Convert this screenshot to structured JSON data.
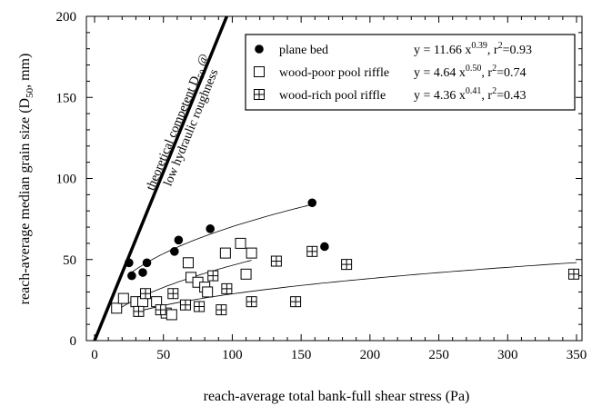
{
  "chart_data": {
    "type": "scatter",
    "xlabel": "reach-average total bank-full shear stress (Pa)",
    "ylabel_main": "reach-average median grain size (D",
    "ylabel_sub": "50",
    "ylabel_tail": ", mm)",
    "xlim": [
      0,
      350
    ],
    "ylim": [
      0,
      200
    ],
    "x_ticks": [
      0,
      50,
      100,
      150,
      200,
      250,
      300,
      350
    ],
    "y_ticks": [
      0,
      50,
      100,
      150,
      200
    ],
    "legend_position": "top-right",
    "series": [
      {
        "name": "plane bed",
        "marker": "filled-circle",
        "equation": {
          "prefix": "y = 11.66 x",
          "exp": "0.39",
          "mid": ", r",
          "r_exp": "2",
          "suffix": "=0.93"
        },
        "fit": {
          "a": 11.66,
          "b": 0.39,
          "x_range": [
            25,
            158
          ]
        },
        "points": [
          [
            25,
            48
          ],
          [
            27,
            40
          ],
          [
            35,
            42
          ],
          [
            38,
            48
          ],
          [
            58,
            55
          ],
          [
            61,
            62
          ],
          [
            84,
            69
          ],
          [
            158,
            85
          ],
          [
            167,
            58
          ]
        ]
      },
      {
        "name": "wood-poor pool riffle",
        "marker": "open-square",
        "equation": {
          "prefix": "y = 4.64 x",
          "exp": "0.50",
          "mid": ", r",
          "r_exp": "2",
          "suffix": "=0.74"
        },
        "fit": {
          "a": 4.64,
          "b": 0.5,
          "x_range": [
            16,
            114
          ]
        },
        "points": [
          [
            16,
            20
          ],
          [
            21,
            26
          ],
          [
            30,
            24
          ],
          [
            35,
            24
          ],
          [
            45,
            24
          ],
          [
            52,
            17
          ],
          [
            56,
            16
          ],
          [
            68,
            48
          ],
          [
            70,
            39
          ],
          [
            75,
            36
          ],
          [
            80,
            33
          ],
          [
            82,
            30
          ],
          [
            95,
            54
          ],
          [
            106,
            60
          ],
          [
            110,
            41
          ],
          [
            114,
            54
          ]
        ]
      },
      {
        "name": "wood-rich pool riffle",
        "marker": "crossed-square",
        "equation": {
          "prefix": "y = 4.36 x",
          "exp": "0.41",
          "mid": ", r",
          "r_exp": "2",
          "suffix": "=0.43"
        },
        "fit": {
          "a": 4.36,
          "b": 0.41,
          "x_range": [
            32,
            350
          ]
        },
        "points": [
          [
            32,
            18
          ],
          [
            37,
            29
          ],
          [
            48,
            19
          ],
          [
            57,
            29
          ],
          [
            66,
            22
          ],
          [
            76,
            21
          ],
          [
            86,
            40
          ],
          [
            92,
            19
          ],
          [
            96,
            32
          ],
          [
            114,
            24
          ],
          [
            132,
            49
          ],
          [
            146,
            24
          ],
          [
            158,
            55
          ],
          [
            183,
            47
          ],
          [
            348,
            41
          ]
        ]
      }
    ],
    "theory_line": {
      "label_line1": "theoretical competent D",
      "label_sub": "50",
      "label_tail": " @",
      "label_line2": "low hydraulic roughness",
      "from": [
        0,
        0
      ],
      "to": [
        96,
        200
      ]
    }
  }
}
